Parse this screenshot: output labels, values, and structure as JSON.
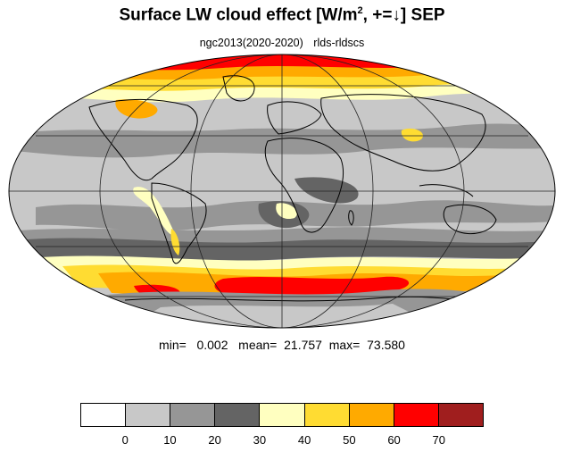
{
  "title_main": "Surface LW cloud effect [W/m",
  "title_sup": "2",
  "title_tail": ", +=↓]  SEP",
  "subtitle_left": "ngc2013(2020-2020)",
  "subtitle_right": "rlds-rldscs",
  "stats": {
    "text": "min=   0.002   mean=  21.757  max=  73.580"
  },
  "colorbar": {
    "colors": [
      "#ffffff",
      "#c8c8c8",
      "#969696",
      "#646464",
      "#ffffc0",
      "#ffdc32",
      "#ffaa00",
      "#ff0000",
      "#a01e1e"
    ],
    "labels": [
      "0",
      "10",
      "20",
      "30",
      "40",
      "50",
      "60",
      "70"
    ]
  },
  "map": {
    "projection": "mollweide",
    "field": "rlds-rldscs",
    "ocean_default_color": "#c8c8c8",
    "land_color": "#c8c8c8"
  }
}
